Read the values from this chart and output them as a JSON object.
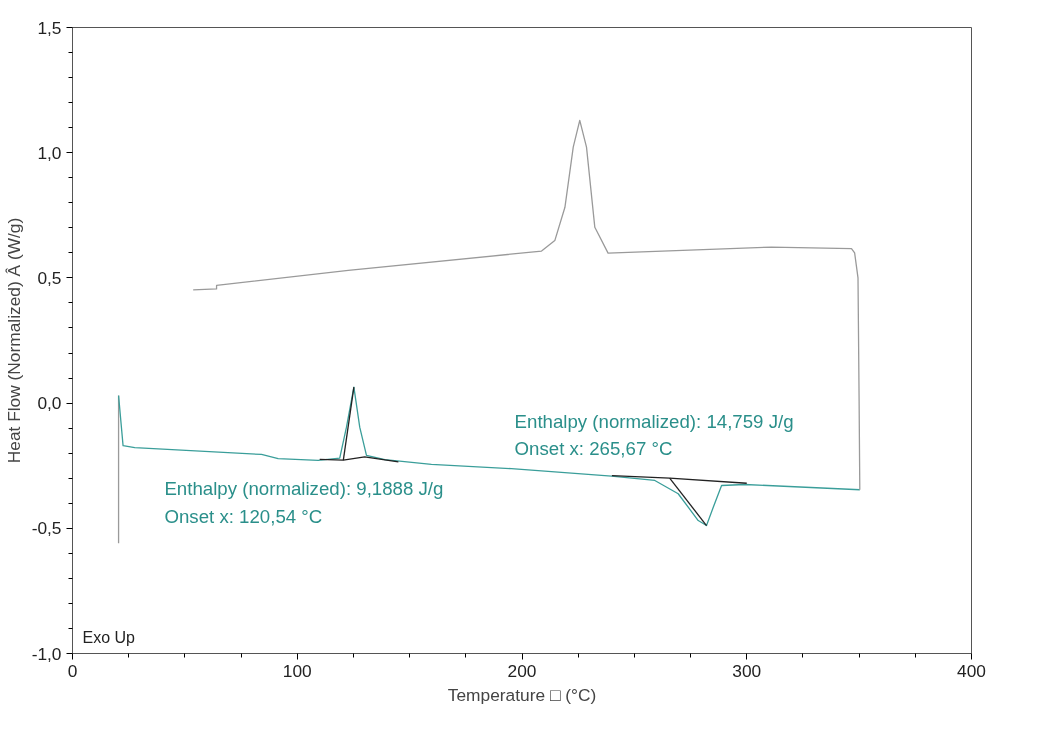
{
  "chart_data": {
    "type": "line",
    "xlabel": "Temperature □ (°C)",
    "ylabel": "Heat Flow (Normalized) Â (W/g)",
    "xlim": [
      0,
      400
    ],
    "ylim": [
      -1.0,
      1.5
    ],
    "xticks": [
      0,
      {
        "value": 25,
        "label": null
      },
      {
        "value": 50,
        "label": null
      },
      {
        "value": 75,
        "label": null
      },
      100,
      {
        "value": 125,
        "label": null
      },
      {
        "value": 150,
        "label": null
      },
      {
        "value": 175,
        "label": null
      },
      200,
      {
        "value": 225,
        "label": null
      },
      {
        "value": 250,
        "label": null
      },
      {
        "value": 275,
        "label": null
      },
      300,
      {
        "value": 325,
        "label": null
      },
      {
        "value": 350,
        "label": null
      },
      {
        "value": 375,
        "label": null
      },
      400
    ],
    "yticks": [
      {
        "value": -1.0,
        "label": "-1,0"
      },
      {
        "value": -0.9,
        "label": null
      },
      {
        "value": -0.8,
        "label": null
      },
      {
        "value": -0.7,
        "label": null
      },
      {
        "value": -0.6,
        "label": null
      },
      {
        "value": -0.5,
        "label": "-0,5"
      },
      {
        "value": -0.4,
        "label": null
      },
      {
        "value": -0.3,
        "label": null
      },
      {
        "value": -0.2,
        "label": null
      },
      {
        "value": -0.1,
        "label": null
      },
      {
        "value": 0.0,
        "label": "0,0"
      },
      {
        "value": 0.1,
        "label": null
      },
      {
        "value": 0.2,
        "label": null
      },
      {
        "value": 0.3,
        "label": null
      },
      {
        "value": 0.4,
        "label": null
      },
      {
        "value": 0.5,
        "label": "0,5"
      },
      {
        "value": 0.6,
        "label": null
      },
      {
        "value": 0.7,
        "label": null
      },
      {
        "value": 0.8,
        "label": null
      },
      {
        "value": 0.9,
        "label": null
      },
      {
        "value": 1.0,
        "label": "1,0"
      },
      {
        "value": 1.1,
        "label": null
      },
      {
        "value": 1.2,
        "label": null
      },
      {
        "value": 1.3,
        "label": null
      },
      {
        "value": 1.4,
        "label": null
      },
      {
        "value": 1.5,
        "label": "1,5"
      }
    ],
    "grid": false,
    "marker": "none",
    "line_style": "solid",
    "series": [
      {
        "color": "#9a9a9a",
        "x": [
          20.5,
          20.5
        ],
        "values": [
          -0.56,
          0.03
        ]
      },
      {
        "color": "#3a9e9a",
        "x": [
          20.5,
          22.5,
          27.7,
          84.1,
          91.5,
          109.3,
          118.9,
          121.9,
          125.2,
          127.8,
          130.8,
          139.0,
          159.7,
          195.3,
          239.8,
          259.1,
          269.5,
          278.4,
          282.1,
          285.1,
          288.8,
          299.1,
          350.3
        ],
        "values": [
          0.03,
          -0.17,
          -0.178,
          -0.205,
          -0.222,
          -0.229,
          -0.22,
          -0.096,
          0.064,
          -0.096,
          -0.209,
          -0.226,
          -0.245,
          -0.262,
          -0.292,
          -0.309,
          -0.362,
          -0.469,
          -0.489,
          -0.416,
          -0.329,
          -0.325,
          -0.346
        ]
      },
      {
        "color": "#9a9a9a",
        "x": [
          350.3,
          350.0,
          349.5,
          348.0,
          346.6,
          311.0,
          238.3,
          232.4,
          228.7,
          225.7,
          222.8,
          219.1,
          214.6,
          208.7,
          122.7,
          64.1,
          64.1,
          53.7
        ],
        "values": [
          -0.346,
          0.0,
          0.5,
          0.6,
          0.617,
          0.623,
          0.599,
          0.702,
          1.022,
          1.129,
          1.022,
          0.782,
          0.649,
          0.607,
          0.53,
          0.47,
          0.456,
          0.452
        ]
      },
      {
        "color": "#222222",
        "x": [
          110.0,
          120.5,
          130.0,
          145.0
        ],
        "values": [
          -0.225,
          -0.228,
          -0.215,
          -0.235
        ]
      },
      {
        "color": "#222222",
        "x": [
          120.5,
          125.2
        ],
        "values": [
          -0.228,
          0.064
        ]
      },
      {
        "color": "#222222",
        "x": [
          240.0,
          265.7,
          300.0
        ],
        "values": [
          -0.29,
          -0.3,
          -0.32
        ]
      },
      {
        "color": "#222222",
        "x": [
          265.7,
          282.1
        ],
        "values": [
          -0.3,
          -0.489
        ]
      }
    ],
    "annotations": [
      "Enthalpy (normalized): 9,1888 J/g\nOnset x: 120,54 °C",
      "Enthalpy (normalized): 14,759 J/g\nOnset x: 265,67 °C",
      "Exo Up"
    ]
  }
}
